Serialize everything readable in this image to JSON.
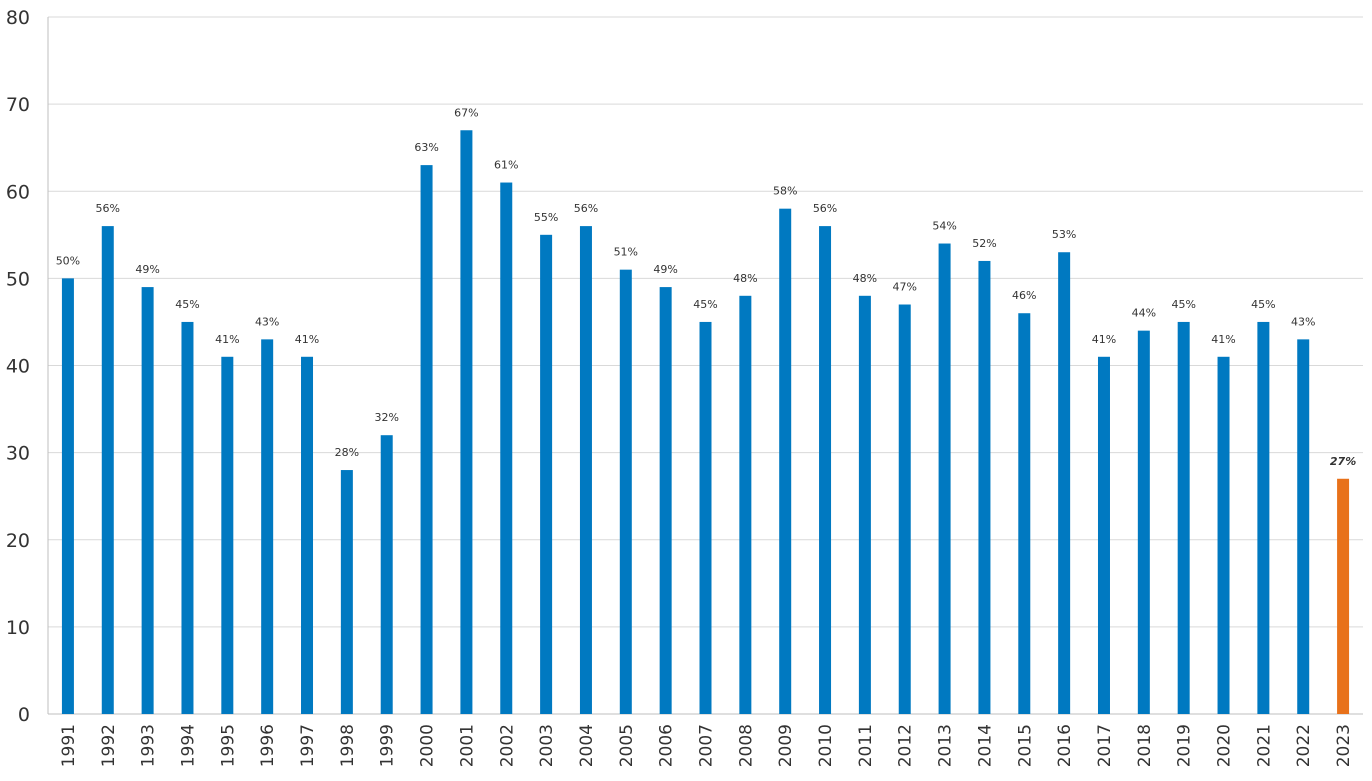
{
  "chart_data": {
    "type": "bar",
    "title": "",
    "xlabel": "",
    "ylabel": "",
    "ylim": [
      0,
      80
    ],
    "yticks": [
      0,
      10,
      20,
      30,
      40,
      50,
      60,
      70,
      80
    ],
    "grid": true,
    "legend": "none",
    "categories": [
      "1991",
      "1992",
      "1993",
      "1994",
      "1995",
      "1996",
      "1997",
      "1998",
      "1999",
      "2000",
      "2001",
      "2002",
      "2003",
      "2004",
      "2005",
      "2006",
      "2007",
      "2008",
      "2009",
      "2010",
      "2011",
      "2012",
      "2013",
      "2014",
      "2015",
      "2016",
      "2017",
      "2018",
      "2019",
      "2020",
      "2021",
      "2022",
      "2023"
    ],
    "values": [
      50,
      56,
      49,
      45,
      41,
      43,
      41,
      28,
      32,
      63,
      67,
      61,
      55,
      56,
      51,
      49,
      45,
      48,
      58,
      56,
      48,
      47,
      54,
      52,
      46,
      53,
      41,
      44,
      45,
      41,
      45,
      43,
      27
    ],
    "data_labels": [
      "50%",
      "56%",
      "49%",
      "45%",
      "41%",
      "43%",
      "41%",
      "28%",
      "32%",
      "63%",
      "67%",
      "61%",
      "55%",
      "56%",
      "51%",
      "49%",
      "45%",
      "48%",
      "58%",
      "56%",
      "48%",
      "47%",
      "54%",
      "52%",
      "46%",
      "53%",
      "41%",
      "44%",
      "45%",
      "41%",
      "45%",
      "43%",
      "27%"
    ],
    "colors": {
      "bar": "#0079c1",
      "highlight": "#e8711a"
    },
    "highlight_category": "2023"
  }
}
